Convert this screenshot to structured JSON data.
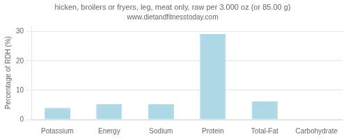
{
  "chart_data": {
    "type": "bar",
    "title": "hicken, broilers or fryers, leg, meat only, raw per 3.000 oz (or 85.00 g)",
    "subtitle": "www.dietandfitnesstoday.com",
    "categories": [
      "Potassium",
      "Energy",
      "Sodium",
      "Protein",
      "Total-Fat",
      "Carbohydrate"
    ],
    "values": [
      4.0,
      5.2,
      5.2,
      29.2,
      6.2,
      0.0
    ],
    "color": "#add8e6",
    "ylabel": "Percentage of RDH (%)",
    "ylim": [
      0,
      32
    ],
    "yticks": [
      0,
      10,
      20,
      30
    ],
    "grid": true
  }
}
